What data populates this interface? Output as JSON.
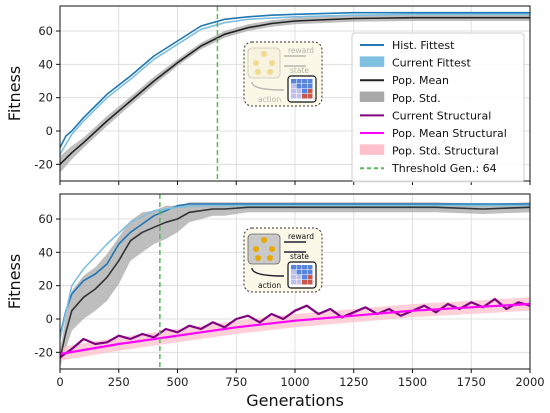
{
  "chart_data": [
    {
      "type": "line",
      "panel": "top",
      "ylabel": "Fitness",
      "xlim": [
        0,
        2000
      ],
      "ylim": [
        -30,
        75
      ],
      "yticks": [
        -20,
        0,
        20,
        40,
        60
      ],
      "grid": true,
      "threshold": {
        "x": 670,
        "label": "Threshold Gen.: 64",
        "color": "#5cb85c"
      },
      "series": [
        {
          "name": "Hist. Fittest",
          "color": "#1f77b4",
          "x": [
            0,
            25,
            50,
            100,
            150,
            200,
            300,
            400,
            500,
            600,
            700,
            800,
            900,
            1000,
            1250,
            1500,
            1750,
            2000
          ],
          "y": [
            -10,
            -3,
            0,
            8,
            15,
            22,
            33,
            45,
            54,
            63,
            67,
            68.5,
            69.5,
            70,
            71,
            71,
            71,
            71
          ]
        },
        {
          "name": "Current Fittest",
          "color": "#7fbfe0",
          "x": [
            0,
            50,
            100,
            200,
            300,
            400,
            500,
            600,
            700,
            800,
            1000,
            1250,
            1500,
            1750,
            2000
          ],
          "y": [
            -14,
            -2,
            6,
            20,
            31,
            43,
            52,
            61,
            65,
            67,
            68.5,
            69.5,
            70,
            70,
            70
          ]
        },
        {
          "name": "Pop. Mean",
          "color": "#222222",
          "x": [
            0,
            50,
            100,
            200,
            300,
            400,
            500,
            600,
            700,
            800,
            900,
            1000,
            1250,
            1500,
            1750,
            2000
          ],
          "y": [
            -20,
            -13,
            -7,
            6,
            18,
            30,
            41,
            51,
            58,
            62,
            64.5,
            66,
            67.5,
            68,
            68,
            68
          ]
        }
      ],
      "bands": [
        {
          "name": "Pop. Std.",
          "color": "#a8a8a8",
          "x": [
            0,
            50,
            100,
            200,
            300,
            400,
            500,
            600,
            700,
            800,
            900,
            1000,
            1250,
            1500,
            1750,
            2000
          ],
          "mean": [
            -20,
            -13,
            -7,
            6,
            18,
            30,
            41,
            51,
            58,
            62,
            64.5,
            66,
            67.5,
            68,
            68,
            68
          ],
          "std": [
            5,
            4,
            3,
            3,
            2.5,
            2.5,
            2,
            2,
            2,
            2,
            2,
            2,
            2,
            2,
            2,
            2
          ]
        }
      ],
      "legend": {
        "placement": "right",
        "entries": [
          {
            "label": "Hist. Fittest",
            "kind": "line",
            "color": "#1f77b4"
          },
          {
            "label": "Current Fittest",
            "kind": "patch",
            "color": "#7fbfe0"
          },
          {
            "label": "Pop. Mean",
            "kind": "line",
            "color": "#222222"
          },
          {
            "label": "Pop. Std.",
            "kind": "patch",
            "color": "#a8a8a8"
          },
          {
            "label": "Current Structural",
            "kind": "line",
            "color": "#800080"
          },
          {
            "label": "Pop. Mean Structural",
            "kind": "line",
            "color": "#ff00ff"
          },
          {
            "label": "Pop. Std. Structural",
            "kind": "patch",
            "color": "#ffc0cb"
          },
          {
            "label": "Threshold Gen.: 64",
            "kind": "dashed",
            "color": "#5cb85c"
          }
        ]
      },
      "inset": {
        "labels": [
          "reward",
          "state",
          "action"
        ]
      }
    },
    {
      "type": "line",
      "panel": "bottom",
      "xlabel": "Generations",
      "ylabel": "Fitness",
      "xlim": [
        0,
        2000
      ],
      "ylim": [
        -30,
        75
      ],
      "xticks": [
        0,
        250,
        500,
        750,
        1000,
        1250,
        1500,
        1750,
        2000
      ],
      "yticks": [
        -20,
        0,
        20,
        40,
        60
      ],
      "grid": true,
      "threshold": {
        "x": 425,
        "color": "#5cb85c"
      },
      "series": [
        {
          "name": "Hist. Fittest",
          "color": "#1f77b4",
          "x": [
            0,
            25,
            50,
            100,
            150,
            200,
            250,
            300,
            350,
            400,
            450,
            500,
            550,
            2000
          ],
          "y": [
            -10,
            5,
            15,
            23,
            27,
            33,
            45,
            52,
            57,
            62,
            65,
            68,
            69,
            69
          ]
        },
        {
          "name": "Current Fittest",
          "color": "#7fbfe0",
          "x": [
            0,
            50,
            100,
            200,
            300,
            400,
            500,
            600,
            2000
          ],
          "y": [
            -12,
            20,
            30,
            45,
            58,
            65,
            67,
            68,
            68
          ]
        },
        {
          "name": "Pop. Mean",
          "color": "#333333",
          "x": [
            0,
            25,
            50,
            100,
            150,
            200,
            250,
            300,
            350,
            400,
            450,
            500,
            550,
            600,
            650,
            700,
            800,
            900,
            1000,
            1200,
            1400,
            1600,
            1800,
            2000
          ],
          "y": [
            -24,
            -8,
            5,
            13,
            18,
            25,
            35,
            47,
            52,
            55,
            58,
            60,
            64,
            65,
            66,
            66,
            67,
            67,
            67,
            67,
            67,
            67,
            66,
            67
          ]
        },
        {
          "name": "Current Structural",
          "color": "#800080",
          "x": [
            0,
            50,
            100,
            150,
            200,
            250,
            300,
            350,
            400,
            450,
            500,
            550,
            600,
            650,
            700,
            750,
            800,
            850,
            900,
            950,
            1000,
            1050,
            1100,
            1150,
            1200,
            1250,
            1300,
            1350,
            1400,
            1450,
            1500,
            1550,
            1600,
            1650,
            1700,
            1750,
            1800,
            1850,
            1900,
            1950,
            2000
          ],
          "y": [
            -23,
            -18,
            -12,
            -15,
            -14,
            -10,
            -12,
            -9,
            -11,
            -6,
            -8,
            -4,
            -6,
            -2,
            -5,
            0,
            2,
            -2,
            3,
            0,
            5,
            8,
            3,
            6,
            1,
            4,
            7,
            3,
            6,
            2,
            5,
            8,
            4,
            9,
            6,
            10,
            7,
            12,
            6,
            10,
            8
          ]
        },
        {
          "name": "Pop. Mean Structural",
          "color": "#ff00ff",
          "x": [
            0,
            250,
            500,
            750,
            1000,
            1250,
            1500,
            1750,
            2000
          ],
          "y": [
            -21,
            -15,
            -10,
            -5,
            -1,
            2,
            5,
            7,
            9
          ]
        }
      ],
      "bands": [
        {
          "name": "Pop. Std.",
          "color": "#a8a8a8",
          "x": [
            0,
            25,
            50,
            100,
            150,
            200,
            250,
            300,
            350,
            400,
            450,
            500,
            550,
            600,
            650,
            700,
            800,
            900,
            1000,
            1200,
            1400,
            1600,
            1800,
            2000
          ],
          "mean": [
            -24,
            -8,
            5,
            13,
            18,
            25,
            35,
            47,
            52,
            55,
            58,
            60,
            64,
            65,
            66,
            66,
            67,
            67,
            67,
            67,
            67,
            67,
            66,
            67
          ],
          "std": [
            5,
            10,
            12,
            13,
            13,
            14,
            14,
            12,
            12,
            10,
            10,
            8,
            6,
            5,
            4,
            4,
            3,
            3,
            3,
            3,
            3,
            3,
            3,
            3
          ]
        },
        {
          "name": "Pop. Std. Structural",
          "color": "#ffc0cb",
          "x": [
            0,
            250,
            500,
            750,
            1000,
            1250,
            1500,
            1750,
            2000
          ],
          "mean": [
            -21,
            -15,
            -10,
            -5,
            -1,
            2,
            5,
            7,
            9
          ],
          "std": [
            4,
            4,
            4,
            4,
            4,
            4,
            4,
            4,
            4
          ]
        }
      ],
      "inset": {
        "labels": [
          "reward",
          "state",
          "action"
        ]
      }
    }
  ]
}
